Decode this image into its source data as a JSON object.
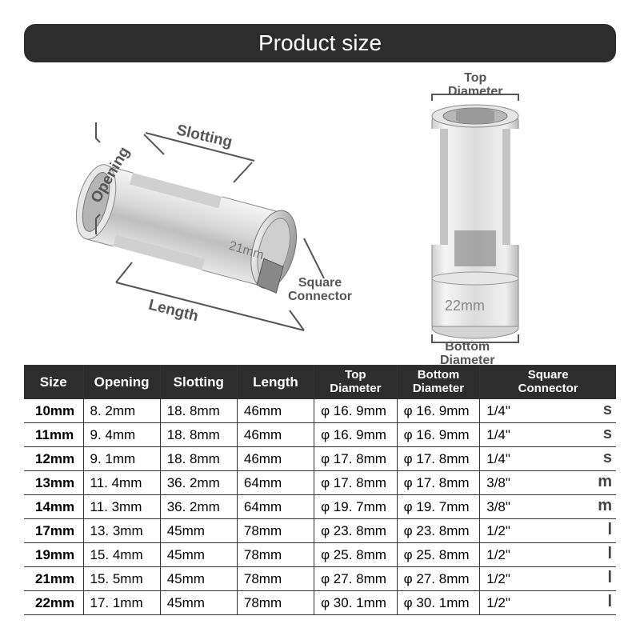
{
  "title": "Product size",
  "labels": {
    "opening": "Opening",
    "slotting": "Slotting",
    "length": "Length",
    "square_connector": "Square\nConnector",
    "top_diameter": "Top\nDiameter",
    "bottom_diameter": "Bottom\nDiameter",
    "size_on_side": "21mm",
    "size_on_right": "22mm"
  },
  "table": {
    "columns": [
      "Size",
      "Opening",
      "Slotting",
      "Length",
      "Top\nDiameter",
      "Bottom\nDiameter",
      "Square\nConnector"
    ],
    "col_widths_pct": [
      10,
      13,
      13,
      13,
      14,
      14,
      23
    ],
    "header_bg": "#2d2d2d",
    "header_fg": "#ffffff",
    "border_color": "#333333",
    "rows": [
      {
        "size": "10mm",
        "opening": "8. 2mm",
        "slotting": "18. 8mm",
        "length": "46mm",
        "top": "φ 16. 9mm",
        "bottom": "φ 16. 9mm",
        "sc": "1/4\"",
        "badge": "s"
      },
      {
        "size": "11mm",
        "opening": "9. 4mm",
        "slotting": "18. 8mm",
        "length": "46mm",
        "top": "φ 16. 9mm",
        "bottom": "φ 16. 9mm",
        "sc": "1/4\"",
        "badge": "s"
      },
      {
        "size": "12mm",
        "opening": "9. 1mm",
        "slotting": "18. 8mm",
        "length": "46mm",
        "top": "φ 17. 8mm",
        "bottom": "φ 17. 8mm",
        "sc": "1/4\"",
        "badge": "s"
      },
      {
        "size": "13mm",
        "opening": "11. 4mm",
        "slotting": "36. 2mm",
        "length": "64mm",
        "top": "φ 17. 8mm",
        "bottom": "φ 17. 8mm",
        "sc": "3/8\"",
        "badge": "m"
      },
      {
        "size": "14mm",
        "opening": "11. 3mm",
        "slotting": "36. 2mm",
        "length": "64mm",
        "top": "φ 19. 7mm",
        "bottom": "φ 19. 7mm",
        "sc": "3/8\"",
        "badge": "m"
      },
      {
        "size": "17mm",
        "opening": "13. 3mm",
        "slotting": "45mm",
        "length": "78mm",
        "top": "φ 23. 8mm",
        "bottom": "φ 23. 8mm",
        "sc": "1/2\"",
        "badge": "l"
      },
      {
        "size": "19mm",
        "opening": "15. 4mm",
        "slotting": "45mm",
        "length": "78mm",
        "top": "φ 25. 8mm",
        "bottom": "φ 25. 8mm",
        "sc": "1/2\"",
        "badge": "l"
      },
      {
        "size": "21mm",
        "opening": "15. 5mm",
        "slotting": "45mm",
        "length": "78mm",
        "top": "φ 27. 8mm",
        "bottom": "φ 27. 8mm",
        "sc": "1/2\"",
        "badge": "l"
      },
      {
        "size": "22mm",
        "opening": "17. 1mm",
        "slotting": "45mm",
        "length": "78mm",
        "top": "φ 30. 1mm",
        "bottom": "φ 30. 1mm",
        "sc": "1/2\"",
        "badge": "l"
      }
    ]
  },
  "colors": {
    "title_bg": "#2d2d2d",
    "title_fg": "#ffffff",
    "label_color": "#555555",
    "metal_light": "#f0f0f0",
    "metal_mid": "#c8c8c8",
    "metal_dark": "#888888",
    "bracket_color": "#555555"
  }
}
